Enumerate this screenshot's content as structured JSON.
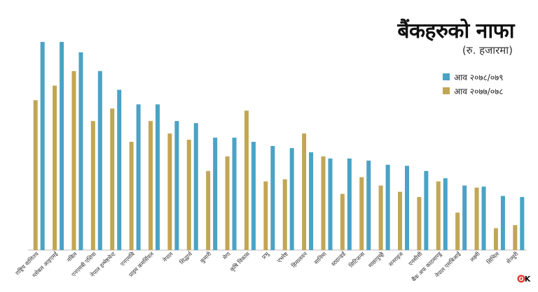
{
  "title": "बैंकहरुको नाफा",
  "subtitle": "(रु. हजारमा)",
  "colors": {
    "current": "#4aa3c4",
    "previous": "#c1a656"
  },
  "chart_data": {
    "type": "bar",
    "title": "बैंकहरुको नाफा",
    "subtitle": "(रु. हजारमा)",
    "legend_position": "top-right",
    "grid": false,
    "ylim": [
      0,
      100
    ],
    "categories": [
      "राष्ट्रिय वाणिज्य",
      "ग्लोबल आइएमई",
      "नबिल",
      "एनएमबी एशिया",
      "नेपाल इन्भेष्टमेन्ट",
      "एनएमबि",
      "प्राइम कमर्सियल",
      "नेपाल",
      "सिद्धार्थ",
      "कुमारी",
      "मेगा",
      "कृषि विकास",
      "प्रभु",
      "एभरेष्ट",
      "हिमालयन",
      "सानिमा",
      "स्ट्यान्डर्ड",
      "सिटिजन्स",
      "माछापुच्छ्रे",
      "सनराइज",
      "एनसीसी",
      "बैंक अफ काठमाण्डु",
      "नेपाल एसबिआई",
      "लक्ष्मी",
      "सिभिल",
      "सेञ्चुरी"
    ],
    "series": [
      {
        "name": "आव २०७८/०७९",
        "values": [
          100,
          100,
          95,
          86,
          77,
          70,
          70,
          62,
          61,
          54,
          54,
          52,
          50,
          49,
          47,
          44,
          44,
          43,
          41,
          40.5,
          38,
          34.5,
          31,
          30.5,
          26,
          25.5
        ]
      },
      {
        "name": "आव २०७७/०७८",
        "values": [
          72,
          79,
          86,
          62,
          68,
          52,
          62,
          56,
          53,
          38,
          45,
          67,
          33,
          34,
          56,
          45,
          27,
          35,
          31,
          28,
          25.5,
          33,
          18,
          30,
          10.5,
          12
        ]
      }
    ]
  },
  "logo_text": "OK"
}
